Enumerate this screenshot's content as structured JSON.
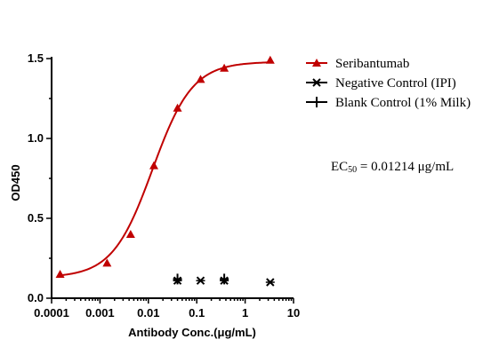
{
  "chart_data": {
    "type": "scatter",
    "xlabel": "Antibody Conc.(μg/mL)",
    "ylabel": "OD450",
    "xscale": "log",
    "xlim": [
      0.0001,
      10
    ],
    "ylim": [
      0,
      1.5
    ],
    "x_ticks": [
      "0.0001",
      "0.001",
      "0.01",
      "0.1",
      "1",
      "10"
    ],
    "y_ticks": [
      "0.0",
      "0.5",
      "1.0",
      "1.5"
    ],
    "legend_position": "top-right",
    "series": [
      {
        "name": "Seribantumab",
        "color": "#c00000",
        "marker": "triangle-icon",
        "fit": "4PL",
        "x": [
          0.00015,
          0.0014,
          0.0043,
          0.013,
          0.04,
          0.12,
          0.37,
          3.3
        ],
        "y": [
          0.15,
          0.22,
          0.4,
          0.83,
          1.19,
          1.37,
          1.44,
          1.49
        ]
      },
      {
        "name": "Negative Control (IPI)",
        "color": "#000000",
        "marker": "asterisk-icon",
        "x": [
          0.04,
          0.12,
          0.37,
          3.3
        ],
        "y": [
          0.11,
          0.11,
          0.11,
          0.1
        ]
      },
      {
        "name": "Blank Control (1% Milk)",
        "color": "#000000",
        "marker": "plus-icon",
        "x": [
          0.04,
          0.37
        ],
        "y": [
          0.12,
          0.12
        ]
      }
    ],
    "fit_params": {
      "bottom": 0.13,
      "top": 1.48,
      "ec50": 0.01214,
      "hill": 1.05
    },
    "annotation": {
      "prefix": "EC",
      "subscript": "50",
      "suffix": " =  0.01214 μg/mL"
    }
  }
}
